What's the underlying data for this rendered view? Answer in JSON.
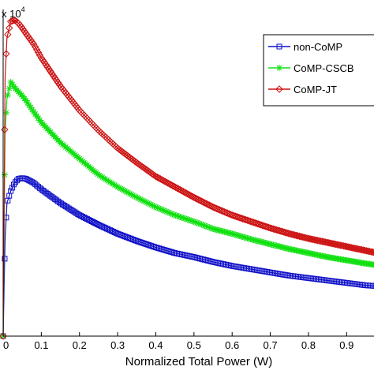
{
  "chart_data": {
    "type": "line",
    "title": "",
    "xlabel": "Normalized Total Power (W)",
    "ylabel": "",
    "y_multiplier_base": "x 10",
    "y_multiplier_exp": "4",
    "xlim": [
      0,
      0.98
    ],
    "ylim": [
      0,
      4.05
    ],
    "x_ticks": [
      0,
      0.1,
      0.2,
      0.3,
      0.4,
      0.5,
      0.6,
      0.7,
      0.8,
      0.9
    ],
    "x_tick_labels": [
      "0",
      "0.1",
      "0.2",
      "0.3",
      "0.4",
      "0.5",
      "0.6",
      "0.7",
      "0.8",
      "0.9"
    ],
    "grid": false,
    "legend_position": "top-right",
    "series": [
      {
        "name": "non-CoMP",
        "color": "#1010c8",
        "marker": "square",
        "x": [
          0,
          0.005,
          0.01,
          0.02,
          0.03,
          0.04,
          0.05,
          0.06,
          0.08,
          0.1,
          0.15,
          0.2,
          0.25,
          0.3,
          0.35,
          0.4,
          0.45,
          0.5,
          0.55,
          0.6,
          0.65,
          0.7,
          0.75,
          0.8,
          0.85,
          0.9,
          0.95,
          0.98
        ],
        "y": [
          0,
          1.2,
          1.65,
          1.8,
          1.9,
          1.95,
          1.96,
          1.95,
          1.9,
          1.82,
          1.65,
          1.5,
          1.38,
          1.27,
          1.18,
          1.1,
          1.03,
          0.98,
          0.92,
          0.87,
          0.83,
          0.79,
          0.75,
          0.72,
          0.69,
          0.66,
          0.63,
          0.62
        ]
      },
      {
        "name": "CoMP-CSCB",
        "color": "#10e010",
        "marker": "star",
        "x": [
          0,
          0.005,
          0.01,
          0.02,
          0.03,
          0.04,
          0.05,
          0.06,
          0.08,
          0.1,
          0.15,
          0.2,
          0.25,
          0.3,
          0.35,
          0.4,
          0.45,
          0.5,
          0.55,
          0.6,
          0.65,
          0.7,
          0.75,
          0.8,
          0.85,
          0.9,
          0.95,
          0.98
        ],
        "y": [
          0,
          2.5,
          2.95,
          3.15,
          3.08,
          3.03,
          2.98,
          2.92,
          2.78,
          2.65,
          2.4,
          2.2,
          2.0,
          1.85,
          1.72,
          1.6,
          1.5,
          1.42,
          1.33,
          1.27,
          1.2,
          1.14,
          1.08,
          1.03,
          0.98,
          0.94,
          0.9,
          0.88
        ]
      },
      {
        "name": "CoMP-JT",
        "color": "#cc1010",
        "marker": "diamond",
        "x": [
          0,
          0.005,
          0.01,
          0.02,
          0.03,
          0.04,
          0.05,
          0.06,
          0.08,
          0.1,
          0.15,
          0.2,
          0.25,
          0.3,
          0.35,
          0.4,
          0.45,
          0.5,
          0.55,
          0.6,
          0.65,
          0.7,
          0.75,
          0.8,
          0.85,
          0.9,
          0.95,
          0.98
        ],
        "y": [
          0,
          3.2,
          3.7,
          3.9,
          3.92,
          3.88,
          3.82,
          3.75,
          3.62,
          3.45,
          3.1,
          2.8,
          2.55,
          2.33,
          2.15,
          1.98,
          1.85,
          1.72,
          1.6,
          1.5,
          1.42,
          1.34,
          1.27,
          1.21,
          1.16,
          1.11,
          1.06,
          1.03
        ]
      }
    ]
  }
}
